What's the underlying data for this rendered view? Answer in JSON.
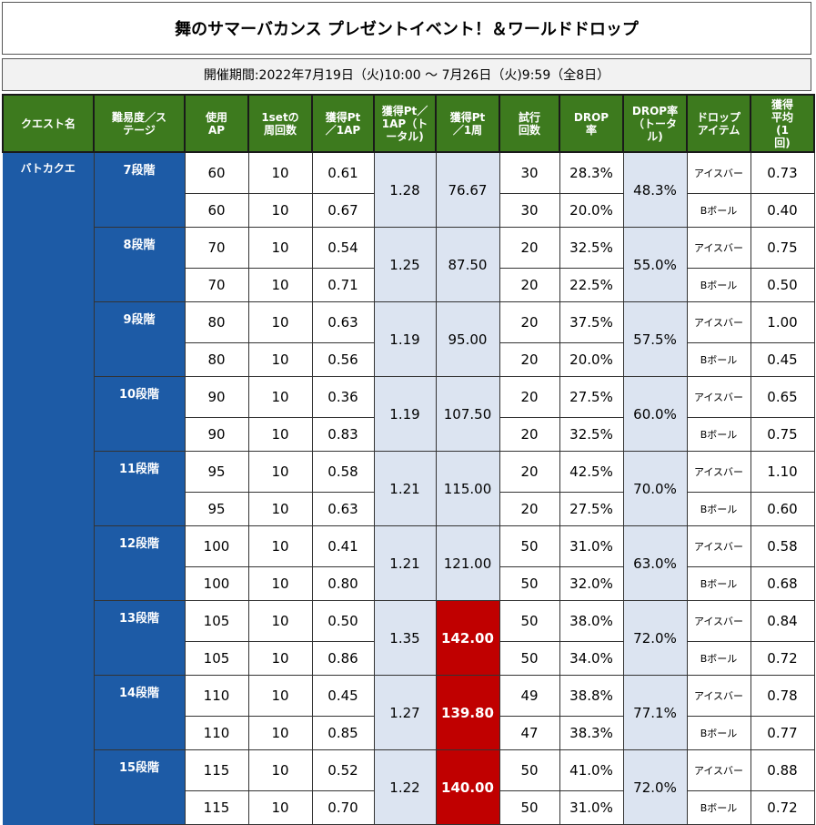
{
  "title": "舞のサマーバカンス プレゼントイベント！＆ワールドドロップ",
  "period": "開催期間:2022年7月19日（火)10:00 ～ 7月26日（火)9:59（全8日）",
  "headers": [
    "クエスト名",
    "難易度／ステージ",
    "使用AP",
    "1setの周回数",
    "獲得Pt／1AP",
    "獲得Pt／1AP（トータル)",
    "獲得Pt／1周",
    "試行回数",
    "DROP率",
    "DROP率（トータル)",
    "ドロップアイテム",
    "獲得平均(1回)"
  ],
  "quest_name": "バトカクエ",
  "highlight_color": "#c00000",
  "stages": [
    {
      "stage": "7段階",
      "pt_total": "1.28",
      "pt_round": "76.67",
      "drop_total": "48.3%",
      "highlight": false,
      "rows": [
        {
          "ap": "60",
          "sets": "10",
          "pt_ap": "0.61",
          "trials": "30",
          "drop": "28.3%",
          "item": "アイスバー",
          "avg": "0.73"
        },
        {
          "ap": "60",
          "sets": "10",
          "pt_ap": "0.67",
          "trials": "30",
          "drop": "20.0%",
          "item": "Bボール",
          "avg": "0.40"
        }
      ]
    },
    {
      "stage": "8段階",
      "pt_total": "1.25",
      "pt_round": "87.50",
      "drop_total": "55.0%",
      "highlight": false,
      "rows": [
        {
          "ap": "70",
          "sets": "10",
          "pt_ap": "0.54",
          "trials": "20",
          "drop": "32.5%",
          "item": "アイスバー",
          "avg": "0.75"
        },
        {
          "ap": "70",
          "sets": "10",
          "pt_ap": "0.71",
          "trials": "20",
          "drop": "22.5%",
          "item": "Bボール",
          "avg": "0.50"
        }
      ]
    },
    {
      "stage": "9段階",
      "pt_total": "1.19",
      "pt_round": "95.00",
      "drop_total": "57.5%",
      "highlight": false,
      "rows": [
        {
          "ap": "80",
          "sets": "10",
          "pt_ap": "0.63",
          "trials": "20",
          "drop": "37.5%",
          "item": "アイスバー",
          "avg": "1.00"
        },
        {
          "ap": "80",
          "sets": "10",
          "pt_ap": "0.56",
          "trials": "20",
          "drop": "20.0%",
          "item": "Bボール",
          "avg": "0.45"
        }
      ]
    },
    {
      "stage": "10段階",
      "pt_total": "1.19",
      "pt_round": "107.50",
      "drop_total": "60.0%",
      "highlight": false,
      "rows": [
        {
          "ap": "90",
          "sets": "10",
          "pt_ap": "0.36",
          "trials": "20",
          "drop": "27.5%",
          "item": "アイスバー",
          "avg": "0.65"
        },
        {
          "ap": "90",
          "sets": "10",
          "pt_ap": "0.83",
          "trials": "20",
          "drop": "32.5%",
          "item": "Bボール",
          "avg": "0.75"
        }
      ]
    },
    {
      "stage": "11段階",
      "pt_total": "1.21",
      "pt_round": "115.00",
      "drop_total": "70.0%",
      "highlight": false,
      "rows": [
        {
          "ap": "95",
          "sets": "10",
          "pt_ap": "0.58",
          "trials": "20",
          "drop": "42.5%",
          "item": "アイスバー",
          "avg": "1.10"
        },
        {
          "ap": "95",
          "sets": "10",
          "pt_ap": "0.63",
          "trials": "20",
          "drop": "27.5%",
          "item": "Bボール",
          "avg": "0.60"
        }
      ]
    },
    {
      "stage": "12段階",
      "pt_total": "1.21",
      "pt_round": "121.00",
      "drop_total": "63.0%",
      "highlight": false,
      "rows": [
        {
          "ap": "100",
          "sets": "10",
          "pt_ap": "0.41",
          "trials": "50",
          "drop": "31.0%",
          "item": "アイスバー",
          "avg": "0.58"
        },
        {
          "ap": "100",
          "sets": "10",
          "pt_ap": "0.80",
          "trials": "50",
          "drop": "32.0%",
          "item": "Bボール",
          "avg": "0.68"
        }
      ]
    },
    {
      "stage": "13段階",
      "pt_total": "1.35",
      "pt_round": "142.00",
      "drop_total": "72.0%",
      "highlight": true,
      "rows": [
        {
          "ap": "105",
          "sets": "10",
          "pt_ap": "0.50",
          "trials": "50",
          "drop": "38.0%",
          "item": "アイスバー",
          "avg": "0.84"
        },
        {
          "ap": "105",
          "sets": "10",
          "pt_ap": "0.86",
          "trials": "50",
          "drop": "34.0%",
          "item": "Bボール",
          "avg": "0.72"
        }
      ]
    },
    {
      "stage": "14段階",
      "pt_total": "1.27",
      "pt_round": "139.80",
      "drop_total": "77.1%",
      "highlight": true,
      "rows": [
        {
          "ap": "110",
          "sets": "10",
          "pt_ap": "0.45",
          "trials": "49",
          "drop": "38.8%",
          "item": "アイスバー",
          "avg": "0.78"
        },
        {
          "ap": "110",
          "sets": "10",
          "pt_ap": "0.85",
          "trials": "47",
          "drop": "38.3%",
          "item": "Bボール",
          "avg": "0.77"
        }
      ]
    },
    {
      "stage": "15段階",
      "pt_total": "1.22",
      "pt_round": "140.00",
      "drop_total": "72.0%",
      "highlight": true,
      "rows": [
        {
          "ap": "115",
          "sets": "10",
          "pt_ap": "0.52",
          "trials": "50",
          "drop": "41.0%",
          "item": "アイスバー",
          "avg": "0.88"
        },
        {
          "ap": "115",
          "sets": "10",
          "pt_ap": "0.70",
          "trials": "50",
          "drop": "31.0%",
          "item": "Bボール",
          "avg": "0.72"
        }
      ]
    }
  ]
}
